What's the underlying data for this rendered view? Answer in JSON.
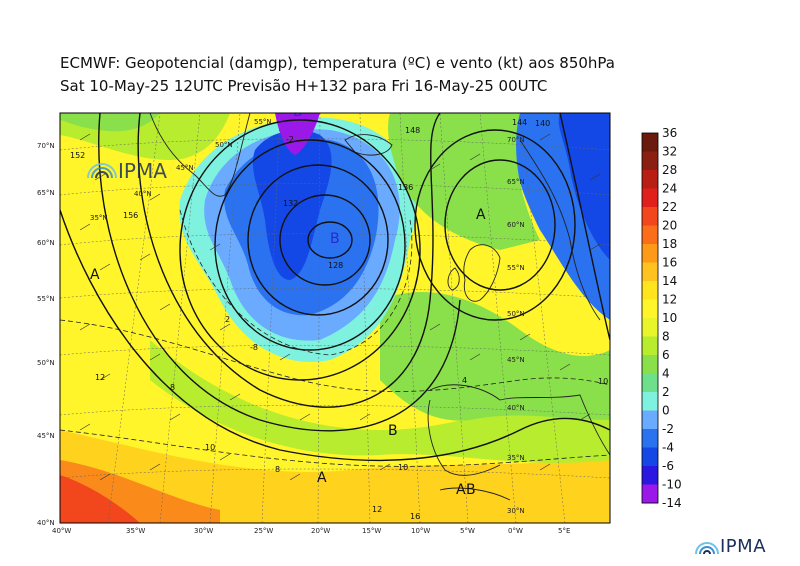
{
  "title_line1": "ECMWF:  Geopotencial (damgp), temperatura (ºC) e vento (kt) aos 850hPa",
  "title_line2": "Sat 10-May-25 12UTC Previsão H+132 para Fri 16-May-25 00UTC",
  "logo_text": "IPMA",
  "colorbar": {
    "labels": [
      "36",
      "32",
      "28",
      "24",
      "22",
      "20",
      "18",
      "16",
      "14",
      "12",
      "10",
      "8",
      "6",
      "4",
      "2",
      "0",
      "-2",
      "-4",
      "-6",
      "-10",
      "-14"
    ],
    "colors": [
      "#6b1a0e",
      "#8a1f12",
      "#b81e14",
      "#e0201a",
      "#f2461c",
      "#fa6e1a",
      "#ff9a18",
      "#ffc21e",
      "#ffe41e",
      "#fff52a",
      "#e8f52a",
      "#b8ec2e",
      "#8ae04a",
      "#6ee08c",
      "#7ef2de",
      "#6aaaff",
      "#2a72f0",
      "#1448e6",
      "#2a18e0",
      "#9a18e8",
      "#f018f0"
    ]
  },
  "lon_labels": [
    "40°W",
    "35°W",
    "30°W",
    "25°W",
    "20°W",
    "15°W",
    "10°W",
    "5°W",
    "0°W",
    "5°E"
  ],
  "lat_labels": [
    "40°N",
    "45°N",
    "50°N",
    "55°N",
    "60°N",
    "65°N",
    "70°N"
  ],
  "pressure_centres": [
    "A",
    "B",
    "B",
    "A",
    "B",
    "A",
    "A",
    "B"
  ],
  "contour_labels": [
    "152",
    "156",
    "148",
    "144",
    "140",
    "136",
    "132",
    "128",
    "12",
    "8",
    "10",
    "-8",
    "10",
    "8",
    "4",
    "16",
    "12",
    "10",
    "2",
    "-2"
  ],
  "grid_labels": [
    "50°N",
    "45°N",
    "40°N",
    "35°N",
    "70°N",
    "65°N",
    "60°N",
    "55°N",
    "50°N",
    "45°N",
    "40°N",
    "35°N",
    "30°N",
    "55°N"
  ]
}
